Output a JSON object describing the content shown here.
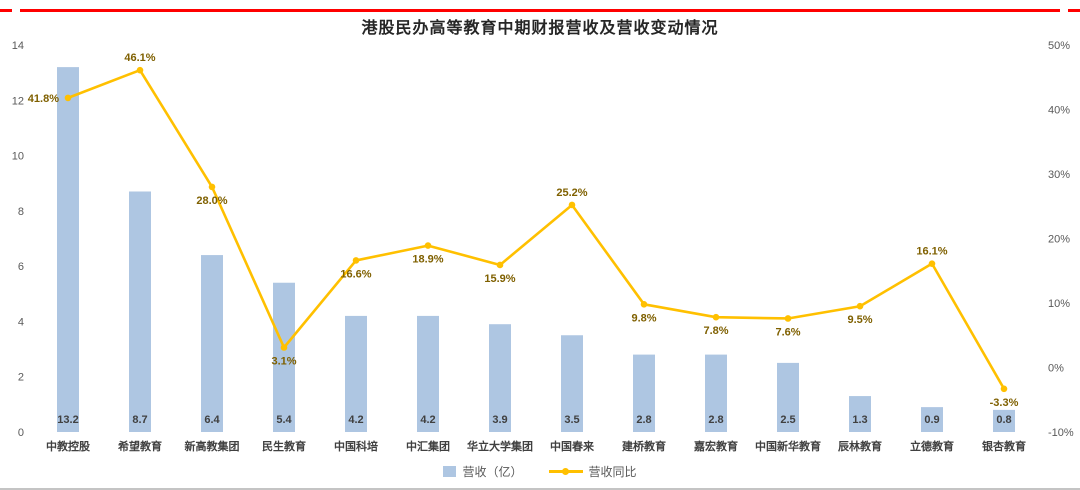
{
  "page": {
    "title": "港股民办高等教育中期财报营收及营收变动情况"
  },
  "legend": {
    "bar_label": "营收（亿）",
    "line_label": "营收同比"
  },
  "colors": {
    "bar": "#aec6e2",
    "line": "#ffc000",
    "bar_value_label": "#404040",
    "line_value_label": "#7f6000",
    "axis_text": "#595959",
    "category_text": "#404040",
    "accent_red": "#ff0000"
  },
  "chart_data": {
    "type": "combo",
    "title": "港股民办高等教育中期财报营收及营收变动情况",
    "categories": [
      "中教控股",
      "希望教育",
      "新高教集团",
      "民生教育",
      "中国科培",
      "中汇集团",
      "华立大学集团",
      "中国春来",
      "建桥教育",
      "嘉宏教育",
      "中国新华教育",
      "辰林教育",
      "立德教育",
      "银杏教育"
    ],
    "series": [
      {
        "name": "营收（亿）",
        "type": "bar",
        "axis": "left",
        "values": [
          13.2,
          8.7,
          6.4,
          5.4,
          4.2,
          4.2,
          3.9,
          3.5,
          2.8,
          2.8,
          2.5,
          1.3,
          0.9,
          0.8
        ]
      },
      {
        "name": "营收同比",
        "type": "line",
        "axis": "right",
        "unit": "%",
        "values": [
          41.8,
          46.1,
          28.0,
          3.1,
          16.6,
          18.9,
          15.9,
          25.2,
          9.8,
          7.8,
          7.6,
          9.5,
          16.1,
          -3.3
        ],
        "label_positions": [
          "left",
          "above",
          "below",
          "below",
          "below",
          "below",
          "below",
          "above",
          "below",
          "below",
          "below",
          "below",
          "above",
          "below"
        ]
      }
    ],
    "left_axis": {
      "min": 0,
      "max": 14,
      "step": 2
    },
    "right_axis": {
      "min": -10,
      "max": 50,
      "step": 10,
      "format": "percent"
    },
    "grid": false,
    "legend_position": "bottom"
  }
}
